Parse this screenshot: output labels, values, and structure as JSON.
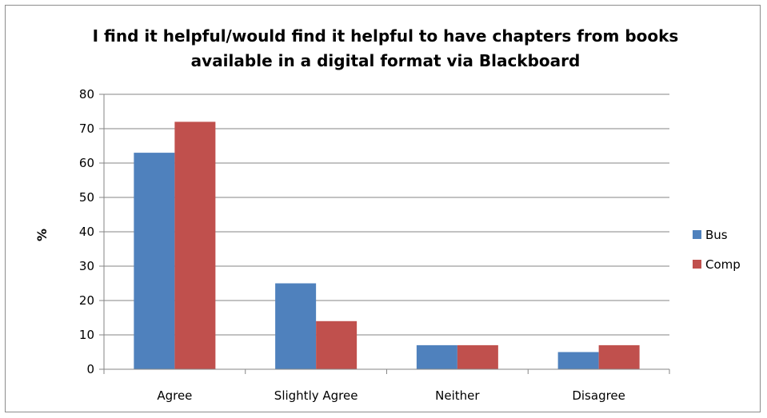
{
  "chart_data": {
    "type": "bar",
    "title_lines": [
      "I find it helpful/would find it helpful to have chapters from books",
      "available in a digital format via Blackboard"
    ],
    "xlabel": "",
    "ylabel": "%",
    "categories": [
      "Agree",
      "Slightly Agree",
      "Neither",
      "Disagree"
    ],
    "series": [
      {
        "name": "Bus",
        "values": [
          63,
          25,
          7,
          5
        ],
        "color": "#4f81bd"
      },
      {
        "name": "Comp",
        "values": [
          72,
          14,
          7,
          7
        ],
        "color": "#c0504d"
      }
    ],
    "ylim": [
      0,
      80
    ],
    "yticks": [
      "0",
      "10",
      "20",
      "30",
      "40",
      "50",
      "60",
      "70",
      "80"
    ],
    "grid": true,
    "legend": "right"
  }
}
